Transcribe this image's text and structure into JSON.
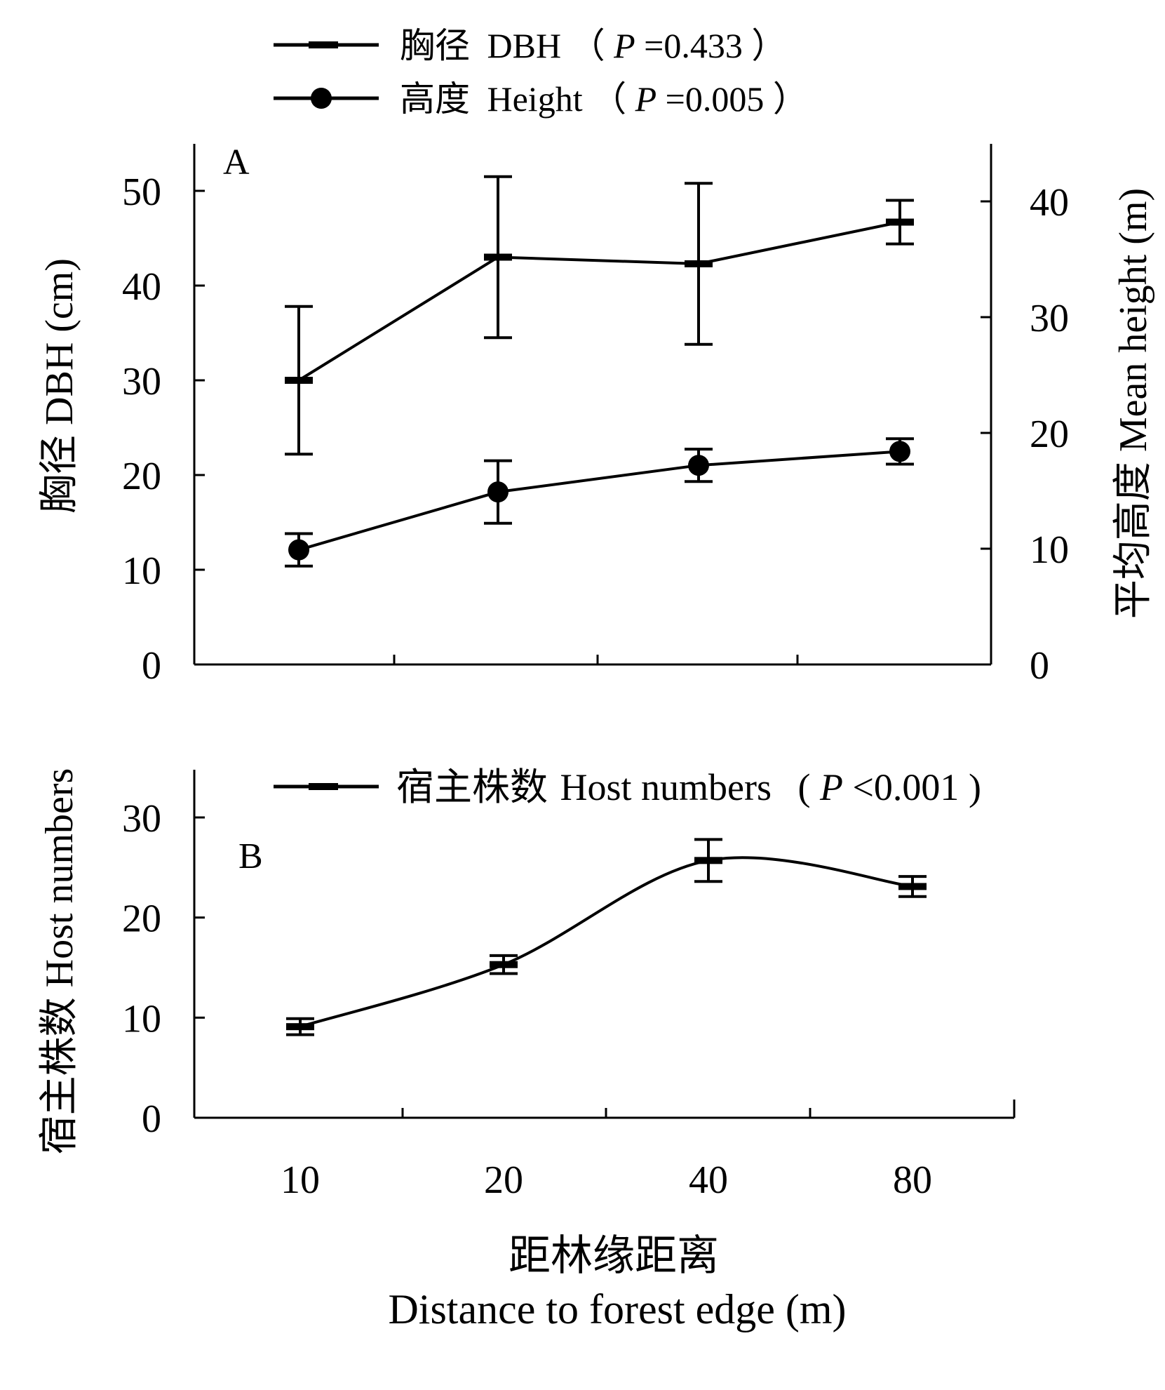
{
  "chart_data": [
    {
      "panel": "A",
      "type": "line",
      "categories": [
        "10",
        "20",
        "40",
        "80"
      ],
      "series": [
        {
          "name": "胸径 DBH（P =0.433）",
          "axis": "left",
          "marker": "dash",
          "values": [
            30,
            43,
            42.3,
            46.7
          ],
          "error": [
            7.8,
            8.5,
            8.5,
            2.3
          ]
        },
        {
          "name": "高度 Height（P =0.005）",
          "axis": "right",
          "marker": "circle",
          "values": [
            9.9,
            14.9,
            17.2,
            18.4
          ],
          "error": [
            1.4,
            2.7,
            1.4,
            1.1
          ]
        }
      ],
      "legend": [
        {
          "cn": "胸径",
          "en": "DBH",
          "p_prefix": "（",
          "p_label": "P",
          "p_value": " =0.433",
          "p_suffix": "）"
        },
        {
          "cn": "高度",
          "en": "Height",
          "p_prefix": "（",
          "p_label": "P",
          "p_value": " =0.005",
          "p_suffix": "）"
        }
      ],
      "ylabel_left": "胸径 DBH (cm)",
      "ylabel_right": "平均高度 Mean height (m)",
      "ylim_left": [
        0,
        55
      ],
      "ylim_right": [
        0,
        45
      ],
      "yticks_left": [
        "0",
        "10",
        "20",
        "30",
        "40",
        "50"
      ],
      "yticks_right": [
        "0",
        "10",
        "20",
        "30",
        "40"
      ],
      "grid": false,
      "legend_position": "top"
    },
    {
      "panel": "B",
      "type": "line",
      "categories": [
        "10",
        "20",
        "40",
        "80"
      ],
      "series": [
        {
          "name": "宿主株数 Host numbers (P<0.001)",
          "marker": "dash",
          "smooth": true,
          "values": [
            9.1,
            15.3,
            25.7,
            23.1
          ],
          "error": [
            0.8,
            0.9,
            2.1,
            1.0
          ]
        }
      ],
      "legend": [
        {
          "cn": "宿主株数",
          "en": "Host numbers",
          "p_prefix": "(",
          "p_label": "P",
          "p_value": "<0.001",
          "p_suffix": ")"
        }
      ],
      "ylabel": "宿主株数 Host numbers",
      "ylim": [
        0,
        35
      ],
      "yticks": [
        "0",
        "10",
        "20",
        "30"
      ],
      "xlabel_cn": "距林缘距离",
      "xlabel_en": "Distance to forest edge (m)",
      "xticks": [
        "10",
        "20",
        "40",
        "80"
      ],
      "grid": false,
      "legend_position": "top"
    }
  ],
  "panel_letters": [
    "A",
    "B"
  ]
}
